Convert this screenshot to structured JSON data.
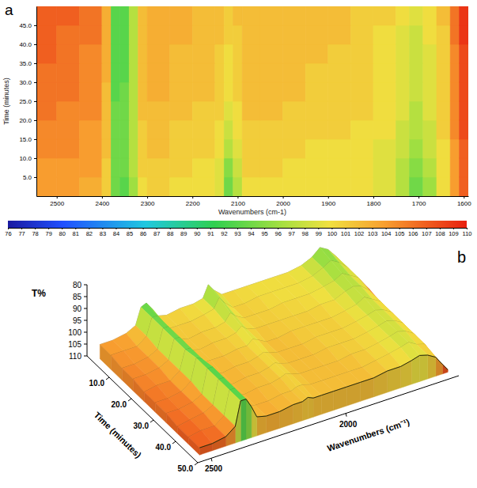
{
  "chart_data": [
    {
      "type": "heatmap",
      "panel": "a",
      "x_label": "Wavenumbers (cm-1)",
      "y_label": "Time (minutes)",
      "xlim": [
        2545,
        1590
      ],
      "xticks": [
        2500,
        2400,
        2300,
        2200,
        2100,
        2000,
        1900,
        1800,
        1700,
        1600
      ],
      "ylim": [
        0,
        50
      ],
      "yticks": [
        {
          "value": 5,
          "label": "5.0"
        },
        {
          "value": 10,
          "label": "10.0"
        },
        {
          "value": 15,
          "label": "15.0"
        },
        {
          "value": 20,
          "label": "20.0"
        },
        {
          "value": 25,
          "label": "25.0"
        },
        {
          "value": 30,
          "label": "30.0"
        },
        {
          "value": 35,
          "label": "35.0"
        },
        {
          "value": 40,
          "label": "40.0"
        },
        {
          "value": 45,
          "label": "45.0"
        }
      ],
      "x_bins": [
        2545,
        2500,
        2450,
        2400,
        2380,
        2360,
        2340,
        2320,
        2300,
        2250,
        2200,
        2150,
        2130,
        2110,
        2090,
        2050,
        2000,
        1950,
        1900,
        1850,
        1800,
        1750,
        1720,
        1690,
        1660,
        1630,
        1610,
        1590
      ],
      "y_bins": [
        0,
        5,
        10,
        15,
        20,
        25,
        30,
        35,
        40,
        45,
        50
      ],
      "cells": [
        [
          104,
          104,
          103,
          101,
          94,
          93,
          96,
          100,
          101,
          100,
          100,
          99,
          94,
          97,
          100,
          100,
          100,
          100,
          100,
          100,
          99,
          97,
          94,
          96,
          100,
          104,
          107
        ],
        [
          104,
          104,
          104,
          101,
          94,
          94,
          97,
          101,
          101,
          101,
          100,
          99,
          95,
          98,
          101,
          101,
          100,
          100,
          100,
          100,
          99,
          97,
          95,
          97,
          100,
          104,
          107
        ],
        [
          105,
          105,
          104,
          102,
          94,
          94,
          97,
          101,
          102,
          101,
          101,
          100,
          97,
          99,
          101,
          101,
          101,
          100,
          100,
          100,
          99,
          98,
          96,
          98,
          100,
          104,
          107
        ],
        [
          105,
          105,
          104,
          102,
          94,
          94,
          97,
          101,
          102,
          101,
          101,
          100,
          98,
          100,
          101,
          101,
          101,
          101,
          101,
          100,
          100,
          98,
          97,
          98,
          101,
          105,
          108
        ],
        [
          106,
          105,
          105,
          102,
          94,
          94,
          97,
          102,
          102,
          102,
          101,
          101,
          99,
          100,
          102,
          102,
          101,
          101,
          101,
          101,
          100,
          99,
          97,
          99,
          101,
          105,
          108
        ],
        [
          106,
          106,
          105,
          102,
          93,
          94,
          97,
          102,
          103,
          102,
          102,
          101,
          100,
          101,
          102,
          102,
          102,
          101,
          101,
          101,
          100,
          99,
          98,
          99,
          101,
          105,
          108
        ],
        [
          106,
          106,
          105,
          103,
          93,
          93,
          97,
          102,
          103,
          102,
          102,
          101,
          100,
          101,
          102,
          102,
          102,
          101,
          101,
          101,
          100,
          99,
          98,
          99,
          101,
          105,
          108
        ],
        [
          107,
          106,
          105,
          103,
          93,
          93,
          97,
          102,
          103,
          102,
          102,
          101,
          100,
          101,
          102,
          102,
          102,
          102,
          101,
          101,
          100,
          99,
          98,
          99,
          101,
          105,
          108
        ],
        [
          107,
          106,
          106,
          103,
          93,
          93,
          97,
          102,
          103,
          103,
          102,
          102,
          101,
          101,
          102,
          102,
          102,
          102,
          102,
          101,
          100,
          99,
          98,
          100,
          101,
          106,
          109
        ],
        [
          107,
          107,
          106,
          103,
          93,
          93,
          97,
          102,
          103,
          103,
          102,
          102,
          101,
          102,
          102,
          102,
          102,
          102,
          102,
          101,
          101,
          100,
          99,
          100,
          102,
          106,
          109
        ]
      ],
      "colorbar_range": [
        76,
        110
      ],
      "colorbar_ticks": [
        76,
        77,
        78,
        79,
        80,
        81,
        82,
        83,
        84,
        85,
        86,
        87,
        88,
        89,
        90,
        91,
        92,
        93,
        94,
        95,
        96,
        97,
        98,
        99,
        100,
        101,
        102,
        103,
        104,
        105,
        106,
        107,
        108,
        109,
        110
      ]
    },
    {
      "type": "surface",
      "panel": "b",
      "x_label": "Wavenumbers (cm⁻¹)",
      "y_label": "Time (minutes)",
      "z_label": "T%",
      "xlim": [
        2550,
        1580
      ],
      "xticks": [
        2500,
        2000
      ],
      "ylim": [
        0,
        50
      ],
      "yticks": [
        {
          "value": 10,
          "label": "10.0"
        },
        {
          "value": 20,
          "label": "20.0"
        },
        {
          "value": 30,
          "label": "30.0"
        },
        {
          "value": 40,
          "label": "40.0"
        },
        {
          "value": 50,
          "label": "50.0"
        }
      ],
      "zlim": [
        80,
        110
      ],
      "zticks": [
        80,
        85,
        90,
        95,
        100,
        105,
        110
      ]
    }
  ]
}
